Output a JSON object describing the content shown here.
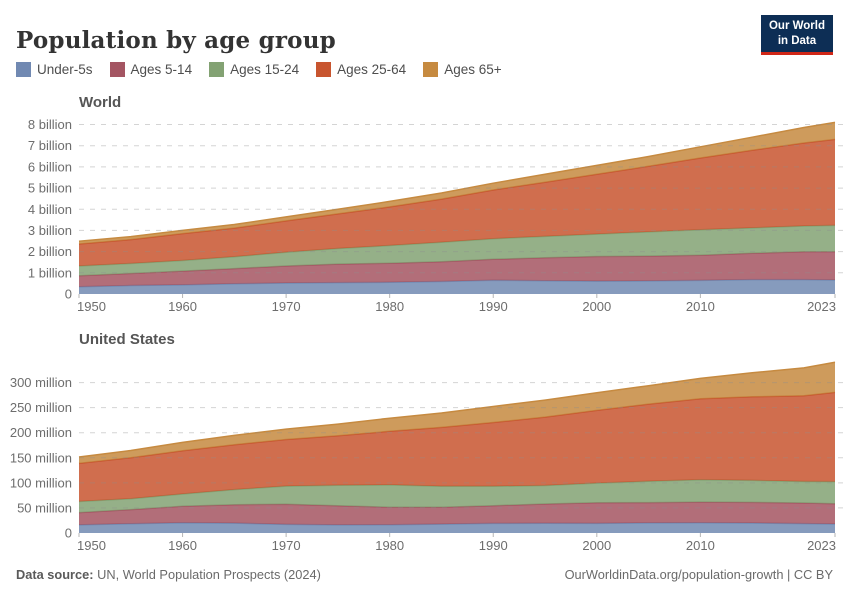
{
  "header": {
    "title": "Population by age group",
    "logo": {
      "line1": "Our World",
      "line2": "in Data"
    }
  },
  "legend": {
    "items": [
      {
        "label": "Under-5s",
        "color": "#7189b2"
      },
      {
        "label": "Ages 5-14",
        "color": "#a45562"
      },
      {
        "label": "Ages 15-24",
        "color": "#83a273"
      },
      {
        "label": "Ages 25-64",
        "color": "#c8552f"
      },
      {
        "label": "Ages 65+",
        "color": "#c68a40"
      }
    ]
  },
  "chart_data": [
    {
      "type": "area",
      "stacked": true,
      "heading": "World",
      "unit": "billion",
      "grid": "dashed",
      "legend_position": "top",
      "ylim": [
        0,
        8.45
      ],
      "x": [
        1950,
        1955,
        1960,
        1965,
        1970,
        1975,
        1980,
        1985,
        1990,
        1995,
        2000,
        2005,
        2010,
        2015,
        2020,
        2023
      ],
      "x_ticks": [
        {
          "v": 1950,
          "label": "1950"
        },
        {
          "v": 1960,
          "label": "1960"
        },
        {
          "v": 1970,
          "label": "1970"
        },
        {
          "v": 1980,
          "label": "1980"
        },
        {
          "v": 1990,
          "label": "1990"
        },
        {
          "v": 2000,
          "label": "2000"
        },
        {
          "v": 2010,
          "label": "2010"
        },
        {
          "v": 2023,
          "label": "2023"
        }
      ],
      "y_ticks": [
        {
          "v": 0,
          "label": "0"
        },
        {
          "v": 1,
          "label": "1 billion"
        },
        {
          "v": 2,
          "label": "2 billion"
        },
        {
          "v": 3,
          "label": "3 billion"
        },
        {
          "v": 4,
          "label": "4 billion"
        },
        {
          "v": 5,
          "label": "5 billion"
        },
        {
          "v": 6,
          "label": "6 billion"
        },
        {
          "v": 7,
          "label": "7 billion"
        },
        {
          "v": 8,
          "label": "8 billion"
        }
      ],
      "series": [
        {
          "name": "Under-5s",
          "values": [
            0.34,
            0.4,
            0.43,
            0.48,
            0.52,
            0.54,
            0.55,
            0.59,
            0.65,
            0.63,
            0.61,
            0.62,
            0.64,
            0.68,
            0.68,
            0.66
          ]
        },
        {
          "name": "Ages 5-14",
          "values": [
            0.52,
            0.57,
            0.65,
            0.72,
            0.8,
            0.87,
            0.9,
            0.93,
            0.99,
            1.08,
            1.16,
            1.17,
            1.19,
            1.24,
            1.31,
            1.33
          ]
        },
        {
          "name": "Ages 15-24",
          "values": [
            0.46,
            0.47,
            0.5,
            0.56,
            0.65,
            0.74,
            0.84,
            0.92,
            0.97,
            1.01,
            1.06,
            1.14,
            1.2,
            1.2,
            1.22,
            1.25
          ]
        },
        {
          "name": "Ages 25-64",
          "values": [
            1.04,
            1.13,
            1.27,
            1.35,
            1.48,
            1.63,
            1.82,
            2.04,
            2.3,
            2.56,
            2.82,
            3.1,
            3.39,
            3.67,
            3.92,
            4.06
          ]
        },
        {
          "name": "Ages 65+",
          "values": [
            0.13,
            0.14,
            0.15,
            0.17,
            0.19,
            0.22,
            0.26,
            0.29,
            0.32,
            0.37,
            0.42,
            0.46,
            0.53,
            0.61,
            0.73,
            0.8
          ]
        }
      ]
    },
    {
      "type": "area",
      "stacked": true,
      "heading": "United States",
      "unit": "million",
      "grid": "dashed",
      "legend_position": "top",
      "ylim": [
        0,
        355
      ],
      "x": [
        1950,
        1955,
        1960,
        1965,
        1970,
        1975,
        1980,
        1985,
        1990,
        1995,
        2000,
        2005,
        2010,
        2015,
        2020,
        2023
      ],
      "x_ticks": [
        {
          "v": 1950,
          "label": "1950"
        },
        {
          "v": 1960,
          "label": "1960"
        },
        {
          "v": 1970,
          "label": "1970"
        },
        {
          "v": 1980,
          "label": "1980"
        },
        {
          "v": 1990,
          "label": "1990"
        },
        {
          "v": 2000,
          "label": "2000"
        },
        {
          "v": 2010,
          "label": "2010"
        },
        {
          "v": 2023,
          "label": "2023"
        }
      ],
      "y_ticks": [
        {
          "v": 0,
          "label": "0"
        },
        {
          "v": 50,
          "label": "50 million"
        },
        {
          "v": 100,
          "label": "100 million"
        },
        {
          "v": 150,
          "label": "150 million"
        },
        {
          "v": 200,
          "label": "200 million"
        },
        {
          "v": 250,
          "label": "250 million"
        },
        {
          "v": 300,
          "label": "300 million"
        }
      ],
      "series": [
        {
          "name": "Under-5s",
          "values": [
            16.2,
            18.6,
            20.3,
            19.8,
            17.2,
            16.1,
            16.5,
            17.8,
            19.2,
            19.6,
            19.2,
            20.2,
            20.4,
            19.9,
            18.8,
            18.0
          ]
        },
        {
          "name": "Ages 5-14",
          "values": [
            24.4,
            28.0,
            32.9,
            36.7,
            40.3,
            38.2,
            34.9,
            33.5,
            35.2,
            38.2,
            41.1,
            40.5,
            41.2,
            41.1,
            41.0,
            40.5
          ]
        },
        {
          "name": "Ages 15-24",
          "values": [
            22.2,
            21.9,
            24.5,
            30.0,
            36.0,
            40.9,
            44.5,
            41.8,
            38.8,
            36.9,
            39.2,
            42.4,
            44.7,
            44.0,
            42.9,
            44.0
          ]
        },
        {
          "name": "Ages 25-64",
          "values": [
            76.1,
            81.6,
            86.4,
            89.7,
            93.0,
            98.6,
            106.9,
            117.5,
            127.2,
            136.5,
            145.1,
            153.9,
            161.5,
            166.7,
            170.9,
            178.0
          ]
        },
        {
          "name": "Ages 65+",
          "values": [
            12.7,
            14.5,
            16.6,
            18.5,
            20.7,
            23.3,
            26.1,
            28.7,
            31.9,
            33.8,
            35.0,
            36.7,
            40.5,
            47.8,
            55.7,
            60.0
          ]
        }
      ]
    }
  ],
  "footer": {
    "source_label": "Data source:",
    "source_text": "UN, World Population Prospects (2024)",
    "link_text": "OurWorldinData.org/population-growth | CC BY"
  }
}
